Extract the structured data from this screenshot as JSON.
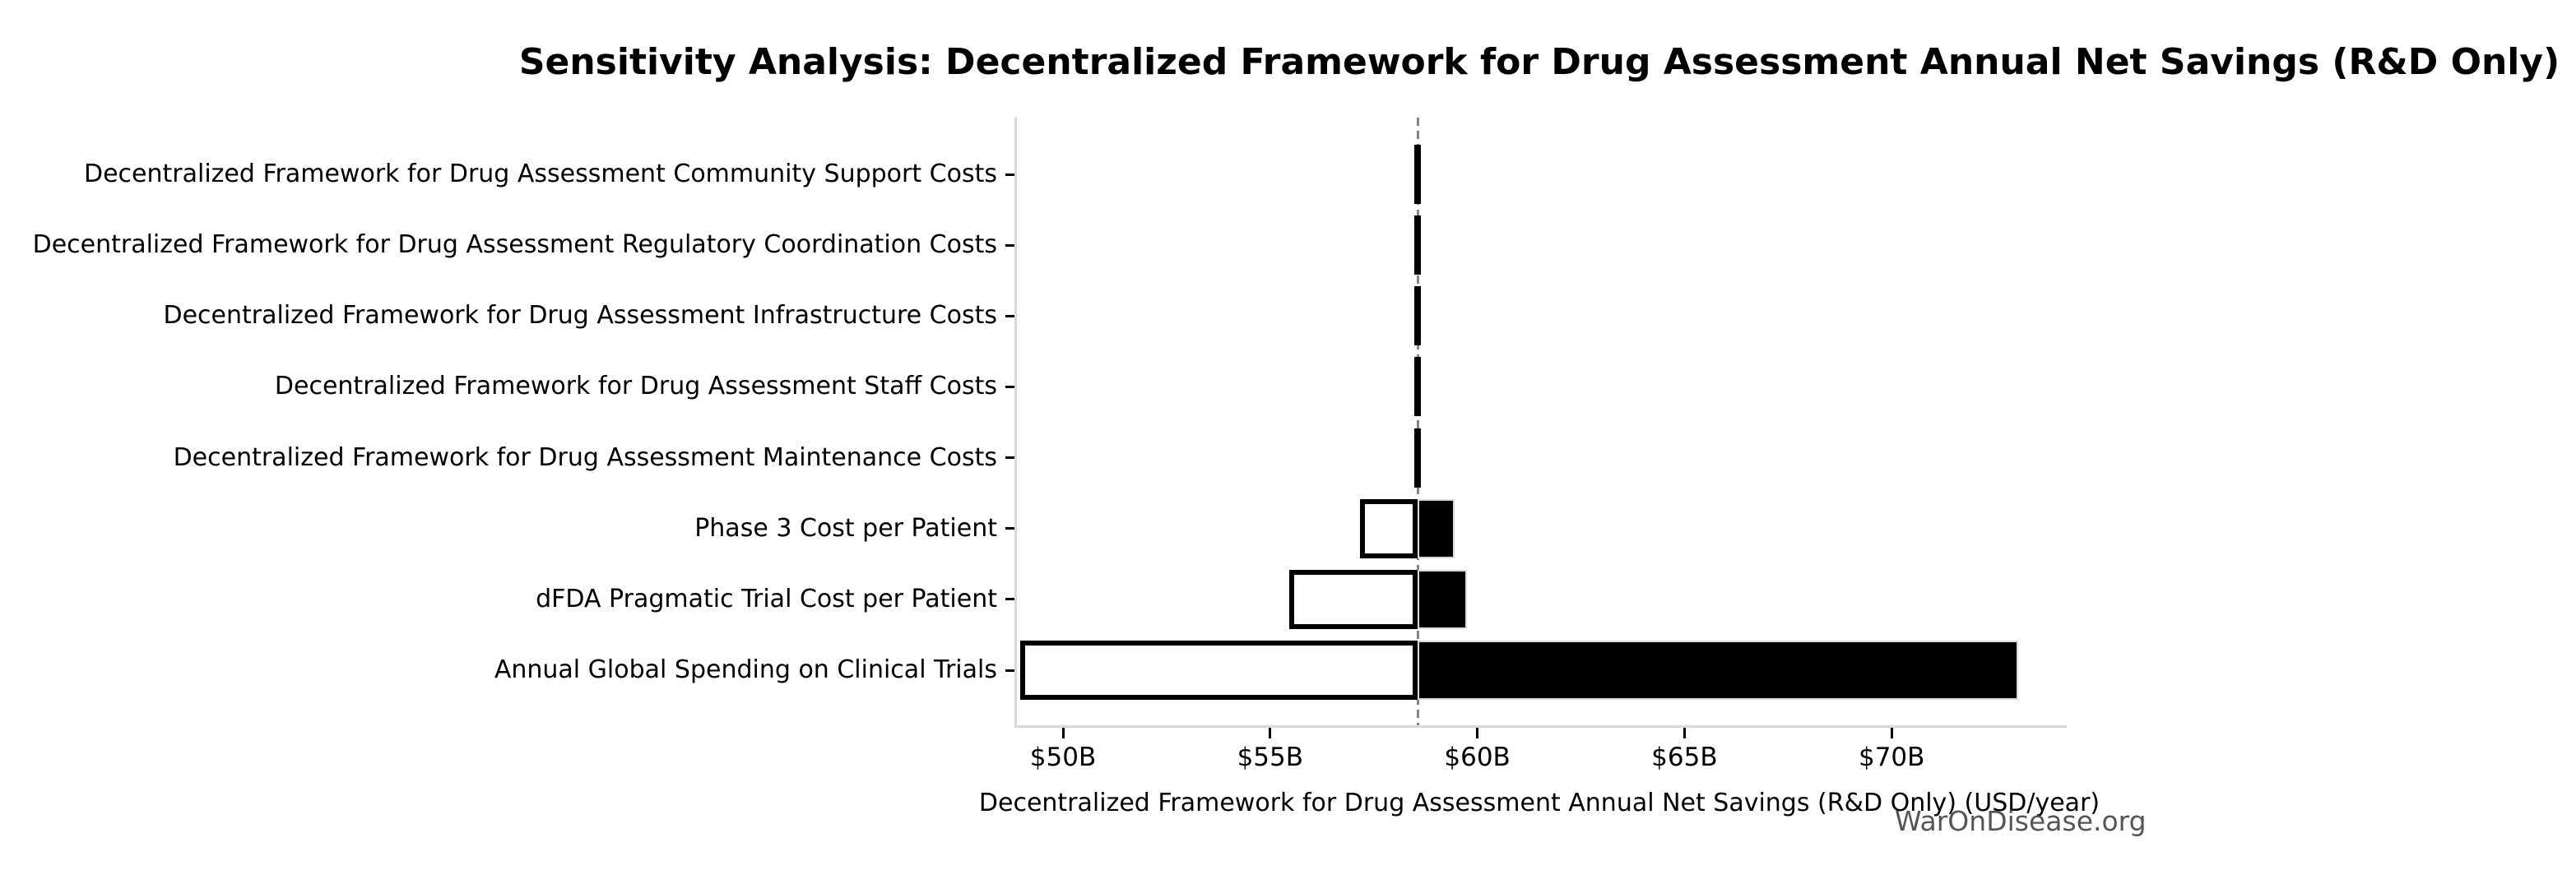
{
  "title": "Sensitivity Analysis: Decentralized Framework for Drug Assessment Annual Net Savings (R&D Only)",
  "watermark": "WarOnDisease.org",
  "chart_data": {
    "type": "bar",
    "subtype": "tornado-sensitivity",
    "orientation": "horizontal",
    "title": "Sensitivity Analysis: Decentralized Framework for Drug Assessment Annual Net Savings (R&D Only)",
    "xlabel": "Decentralized Framework for Drug Assessment Annual Net Savings (R&D Only) (USD/year)",
    "ylabel": "",
    "x_unit": "USD billions per year",
    "xlim": [
      48.8,
      74.2
    ],
    "x_tick_values": [
      50,
      55,
      60,
      65,
      70
    ],
    "x_tick_labels": [
      "$50B",
      "$55B",
      "$60B",
      "$65B",
      "$70B"
    ],
    "baseline_value": 58.5,
    "grid": false,
    "legend": false,
    "categories": [
      "Decentralized Framework for Drug Assessment Community Support Costs",
      "Decentralized Framework for Drug Assessment Regulatory Coordination Costs",
      "Decentralized Framework for Drug Assessment Infrastructure Costs",
      "Decentralized Framework for Drug Assessment Staff Costs",
      "Decentralized Framework for Drug Assessment Maintenance Costs",
      "Phase 3 Cost per Patient",
      "dFDA Pragmatic Trial Cost per Patient",
      "Annual Global Spending on Clinical Trials"
    ],
    "series": [
      {
        "name": "low_value",
        "values": [
          58.42,
          58.42,
          58.42,
          58.42,
          58.42,
          57.1,
          55.4,
          48.9
        ]
      },
      {
        "name": "high_value",
        "values": [
          58.58,
          58.58,
          58.58,
          58.58,
          58.58,
          59.4,
          59.7,
          73.0
        ]
      }
    ],
    "colors": {
      "low_bar_fill": "#ffffff",
      "low_bar_edge": "#000000",
      "high_bar_fill": "#000000",
      "high_bar_edge": "#d9d9d9",
      "baseline_line": "#858585",
      "axis_spine": "#d9d9d9",
      "tick": "#000000",
      "text": "#000000",
      "watermark": "#555555"
    }
  }
}
